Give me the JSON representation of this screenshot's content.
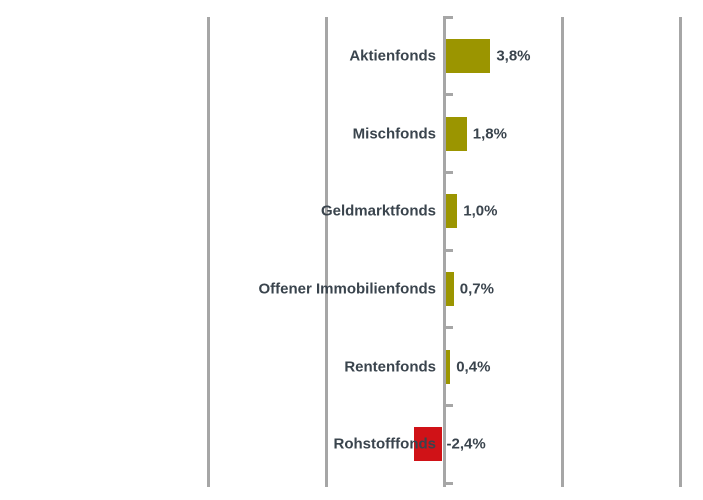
{
  "chart_data": {
    "type": "bar",
    "orientation": "horizontal",
    "categories": [
      "Aktienfonds",
      "Mischfonds",
      "Geldmarktfonds",
      "Offener Immobilienfonds",
      "Rentenfonds",
      "Rohstofffonds"
    ],
    "values": [
      3.8,
      1.8,
      1.0,
      0.7,
      0.4,
      -2.4
    ],
    "value_labels": [
      "3,8%",
      "1,8%",
      "1,0%",
      "0,7%",
      "0,4%",
      "-2,4%"
    ],
    "title": "",
    "xlabel": "",
    "ylabel": "",
    "xlim": [
      -20,
      20
    ],
    "gridline_step": 10,
    "grid": "vertical-only",
    "axis_tick_labels_visible": false,
    "legend": "none",
    "colors": {
      "positive_bar": "#9B9500",
      "negative_bar": "#D01217",
      "label_text": "#3A444D",
      "gridline": "#A6A6A6",
      "background": "#FFFFFF"
    }
  }
}
